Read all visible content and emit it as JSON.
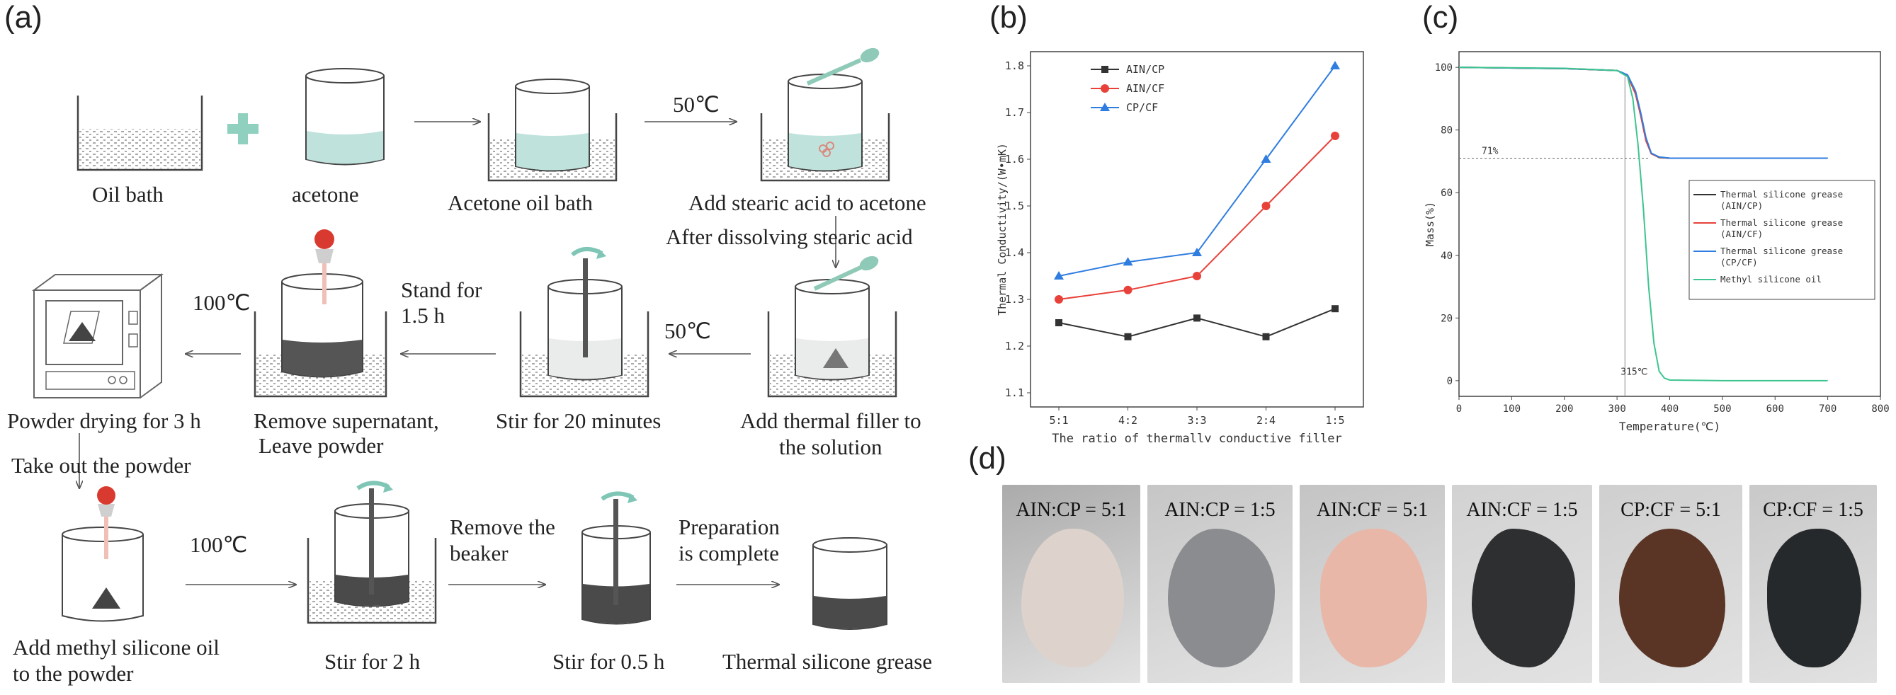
{
  "panels": {
    "a": "(a)",
    "b": "(b)",
    "c": "(c)",
    "d": "(d)"
  },
  "process": {
    "row1": {
      "oil_bath": "Oil bath",
      "acetone": "acetone",
      "acetone_oil_bath": "Acetone oil bath",
      "temp_50": "50℃",
      "add_stearic": "Add stearic acid to acetone",
      "after_dissolving": "After dissolving stearic acid"
    },
    "row2": {
      "temp_100": "100℃",
      "stand_l1": "Stand for",
      "stand_l2": "1.5 h",
      "temp_50": "50℃",
      "powder_drying": "Powder drying for 3 h",
      "remove_l1": "Remove supernatant,",
      "remove_l2": "Leave powder",
      "stir_20": "Stir for 20 minutes",
      "add_filler_l1": "Add thermal filler to",
      "add_filler_l2": "the solution",
      "take_out": "Take out the powder"
    },
    "row3": {
      "temp_100": "100℃",
      "remove_beaker_l1": "Remove the",
      "remove_beaker_l2": "beaker",
      "prep_l1": "Preparation",
      "prep_l2": "is complete",
      "add_methyl_l1": "Add methyl silicone oil",
      "add_methyl_l2": "to the powder",
      "stir_2h": "Stir for 2 h",
      "stir_05h": "Stir for 0.5 h",
      "grease": "Thermal silicone grease"
    }
  },
  "colors": {
    "liquid": "#bfe3dc",
    "arrow_green": "#7fc6b6",
    "dropper_red": "#d93a2f",
    "sediment": "#4a4a4a",
    "red": "#e8413a",
    "blue": "#2f7de0",
    "green": "#3dc48f",
    "black": "#333333"
  },
  "chart_data": [
    {
      "type": "line",
      "xlabel": "The ratio of thermally conductive filler",
      "ylabel": "Thermal Conductivity/(W•mK)",
      "categories": [
        "5:1",
        "4:2",
        "3:3",
        "2:4",
        "1:5"
      ],
      "ylim": [
        1.1,
        1.8
      ],
      "yticks": [
        "1.1",
        "1.2",
        "1.3",
        "1.4",
        "1.5",
        "1.6",
        "1.7",
        "1.8"
      ],
      "legend": "top-left",
      "series": [
        {
          "name": "AIN/CP",
          "color": "#333333",
          "marker": "square",
          "values": [
            1.25,
            1.22,
            1.26,
            1.22,
            1.28
          ]
        },
        {
          "name": "AIN/CF",
          "color": "#e8413a",
          "marker": "circle",
          "values": [
            1.3,
            1.32,
            1.35,
            1.5,
            1.65
          ]
        },
        {
          "name": "CP/CF",
          "color": "#2f7de0",
          "marker": "triangle",
          "values": [
            1.35,
            1.38,
            1.4,
            1.6,
            1.8
          ]
        }
      ]
    },
    {
      "type": "line",
      "xlabel": "Temperature(℃)",
      "ylabel": "Mass(%)",
      "xlim": [
        0,
        800
      ],
      "ylim": [
        -5,
        105
      ],
      "xticks": [
        "0",
        "100",
        "200",
        "300",
        "400",
        "500",
        "600",
        "700",
        "800"
      ],
      "yticks": [
        "0",
        "20",
        "40",
        "60",
        "80",
        "100"
      ],
      "annotations": {
        "h_line": "71%",
        "v_line": "315℃"
      },
      "ref_y": 71,
      "ref_x": 315,
      "legend": "right",
      "series": [
        {
          "name": "Thermal silicone grease (AIN/CP)",
          "color": "#333333",
          "x": [
            0,
            200,
            300,
            320,
            335,
            345,
            355,
            365,
            380,
            400,
            500,
            700
          ],
          "y": [
            100,
            99.6,
            99,
            97.5,
            92,
            85,
            77,
            72.5,
            71.2,
            71,
            71,
            71
          ]
        },
        {
          "name": "Thermal silicone grease (AIN/CF)",
          "color": "#e8413a",
          "x": [
            0,
            200,
            300,
            320,
            335,
            345,
            355,
            365,
            380,
            400,
            500,
            700
          ],
          "y": [
            100,
            99.6,
            99,
            97.3,
            91.5,
            84.5,
            76.5,
            72.4,
            71.3,
            71,
            71,
            71
          ]
        },
        {
          "name": "Thermal silicone grease (CP/CF)",
          "color": "#2f7de0",
          "x": [
            0,
            200,
            300,
            320,
            335,
            345,
            355,
            365,
            380,
            400,
            500,
            700
          ],
          "y": [
            100,
            99.6,
            99,
            97.6,
            92.5,
            85.5,
            77.5,
            72.6,
            71.4,
            71,
            71,
            71
          ]
        },
        {
          "name": "Methyl silicone oil",
          "color": "#3dc48f",
          "x": [
            0,
            200,
            300,
            320,
            330,
            340,
            350,
            360,
            370,
            380,
            390,
            400,
            500,
            700
          ],
          "y": [
            100,
            99.7,
            99,
            97,
            90,
            75,
            55,
            30,
            12,
            3,
            0.8,
            0.2,
            0,
            0
          ]
        }
      ]
    }
  ],
  "photos": [
    {
      "label": "AIN:CP = 5:1",
      "bg": "#ababab",
      "blob": "#ddd3cc"
    },
    {
      "label": "AIN:CP = 1:5",
      "bg": "#c6c6c6",
      "blob": "#8a8c8f"
    },
    {
      "label": "AIN:CF = 5:1",
      "bg": "#c4c4c4",
      "blob": "#e8b7a8"
    },
    {
      "label": "AIN:CF = 1:5",
      "bg": "#d2d2d2",
      "blob": "#2d2f31"
    },
    {
      "label": "CP:CF = 5:1",
      "bg": "#cfcfcf",
      "blob": "#5a3526"
    },
    {
      "label": "CP:CF = 1:5",
      "bg": "#c9c9c9",
      "blob": "#26292b"
    }
  ]
}
